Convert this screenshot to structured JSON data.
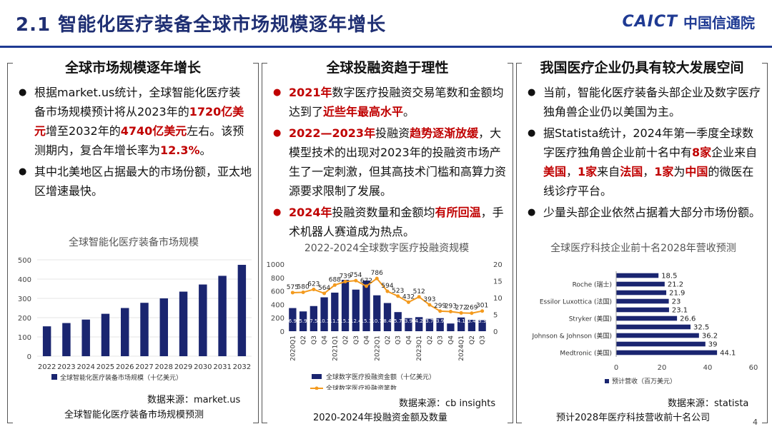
{
  "header": {
    "title": "2.1 智能化医疗装备全球市场规模逐年增长",
    "logo_latin": "CAICT",
    "logo_cn": "中国信通院"
  },
  "panel1": {
    "title": "全球市场规模逐年增长",
    "b1_p1": "根据market.us统计，全球智能化医疗装备市场规模预计将从2023年的",
    "b1_h1": "1720亿美元",
    "b1_p2": "增至2032年的",
    "b1_h2": "4740亿美元",
    "b1_p3": "左右。该预测期内，复合年增长率为",
    "b1_h3": "12.3%",
    "b1_p4": "。",
    "b2": "其中北美地区占据最大的市场份额，亚太地区增速最快。",
    "source": "数据来源：market.us",
    "caption": "全球智能化医疗装备市场规模预测"
  },
  "panel2": {
    "title": "全球投融资趋于理性",
    "b1_h1": "2021年",
    "b1_p1": "数字医疗投融资交易笔数和金额均达到了",
    "b1_h2": "近些年最高水平",
    "b1_p2": "。",
    "b2_h1": "2022—2023年",
    "b2_p1": "投融资",
    "b2_h2": "趋势逐渐放缓",
    "b2_p2": "，大模型技术的出现对2023年的投融资市场产生了一定刺激，但其高技术门槛和高算力资源要求限制了发展。",
    "b3_h1": "2024年",
    "b3_p1": "投融资数量和金额均",
    "b3_h2": "有所回温",
    "b3_p2": "，手术机器人赛道成为热点。",
    "source": "数据来源：cb insights",
    "caption": "2020-2024年投融资金额及数量"
  },
  "panel3": {
    "title": "我国医疗企业仍具有较大发展空间",
    "b1": "当前，智能化医疗装备头部企业及数字医疗独角兽企业仍以美国为主。",
    "b2_p1": "据Statista统计，2024年第一季度全球数字医疗独角兽企业前十名中有",
    "b2_h1": "8家",
    "b2_p2": "企业来自",
    "b2_h2": "美国",
    "b2_p3": "，",
    "b2_h3": "1家",
    "b2_p4": "来自",
    "b2_h4": "法国",
    "b2_p5": "，",
    "b2_h5": "1家",
    "b2_p6": "为",
    "b2_h6": "中国",
    "b2_p7": "的微医在线诊疗平台。",
    "b3": "少量头部企业依然占据着大部分市场份额。",
    "source": "数据来源：statista",
    "caption": "预计2028年医疗科技营收前十名公司"
  },
  "page_number": "4",
  "chart_data": [
    {
      "type": "bar",
      "title": "全球智能化医疗装备市场规模",
      "categories": [
        "2022",
        "2023",
        "2024",
        "2025",
        "2026",
        "2027",
        "2028",
        "2029",
        "2030",
        "2031",
        "2032"
      ],
      "series": [
        {
          "name": "全球智能化医疗装备市场规模（十亿美元）",
          "values": [
            155,
            172,
            190,
            220,
            250,
            277,
            300,
            335,
            372,
            417,
            474
          ]
        }
      ],
      "ylim": [
        0,
        500
      ],
      "yticks": [
        0,
        100,
        200,
        300,
        400,
        500
      ],
      "color": "#1a2570",
      "legend": "bottom"
    },
    {
      "type": "bar+line",
      "title": "2022-2024全球数字医疗投融资规模",
      "categories": [
        "2020Q1",
        "Q2",
        "Q3",
        "Q4",
        "2021Q1",
        "Q2",
        "Q3",
        "Q4",
        "2022Q1",
        "Q2",
        "Q3",
        "Q4",
        "2023Q1",
        "Q2",
        "Q3",
        "Q4",
        "2024Q1",
        "Q2",
        "Q3"
      ],
      "series": [
        {
          "name": "全球数字医疗投融资金额（十亿美元）",
          "type": "bar",
          "axis": "right",
          "values": [
            6.9,
            5.9,
            7.5,
            10.1,
            11.5,
            15.3,
            12.4,
            15.1,
            10.7,
            8.4,
            5.7,
            3.9,
            4.2,
            3.7,
            3.9,
            2.3,
            4.1,
            3.4,
            3.3
          ]
        },
        {
          "name": "全球数字医疗投融资笔数",
          "type": "line",
          "axis": "left",
          "values": [
            575,
            580,
            623,
            564,
            688,
            739,
            754,
            672,
            786,
            594,
            523,
            432,
            512,
            393,
            299,
            293,
            272,
            269,
            301
          ]
        }
      ],
      "bar_labels": [
        "6.9",
        "5.9",
        "7.5",
        "10.1",
        "11.5",
        "15.3",
        "12.4",
        "15.1",
        "10.7",
        "8.4",
        "5.7",
        "3.9",
        "4.2",
        "3.7",
        "3.9",
        "2.3",
        "4.1",
        "3.4",
        "3.3"
      ],
      "yleft_ticks": [
        0,
        200,
        400,
        600,
        800,
        1000
      ],
      "yright_ticks": [
        0,
        5,
        10,
        15,
        20
      ],
      "bar_color": "#1a2570",
      "line_color": "#f39a1e",
      "legend": "bottom"
    },
    {
      "type": "bar",
      "orientation": "horizontal",
      "title": "全球医疗科技企业前十名2028年营收预测",
      "categories": [
        "",
        "Roche (瑞士)",
        "",
        "Essilor Luxottica (法国)",
        "",
        "Stryker (美国)",
        "",
        "Johnson & Johnson (美国)",
        "",
        "Medtronic (美国)"
      ],
      "series": [
        {
          "name": "预计营收（百万美元）",
          "values": [
            18.5,
            21.2,
            21.9,
            23,
            23.1,
            26.6,
            32.5,
            36.2,
            39,
            44.1
          ]
        }
      ],
      "xlim": [
        0,
        60
      ],
      "xticks": [
        0,
        20,
        40,
        60
      ],
      "color": "#1a2570",
      "legend": "bottom-left"
    }
  ]
}
